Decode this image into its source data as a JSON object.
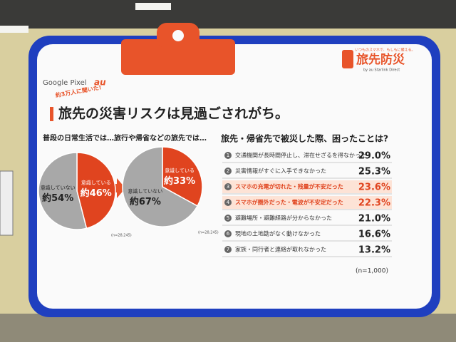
{
  "header": {
    "brand": "Google Pixel",
    "carrier": "au",
    "badge": "約3万人に聞いた!",
    "title": "旅先の災害リスクは見過ごされがち。"
  },
  "logo": {
    "tagline": "いつものスマホで、もしもに備える。",
    "name": "旅先防災",
    "by": "by au Starlink Direct"
  },
  "chart_data": [
    {
      "type": "pie",
      "title": "普段の日常生活では…",
      "categories": [
        "意識している",
        "意識していない"
      ],
      "values": [
        46,
        54
      ],
      "value_labels": [
        "約46%",
        "約54%"
      ],
      "colors": [
        "#e0441f",
        "#a8a8a8"
      ],
      "note": "(n=28,245)"
    },
    {
      "type": "pie",
      "title": "旅行や帰省などの旅先では…",
      "categories": [
        "意識している",
        "意識していない"
      ],
      "values": [
        33,
        67
      ],
      "value_labels": [
        "約33%",
        "約67%"
      ],
      "colors": [
        "#e0441f",
        "#a8a8a8"
      ],
      "note": "(n=28,245)"
    }
  ],
  "survey": {
    "title": "旅先・帰省先で被災した際、困ったことは?",
    "note": "(n=1,000)",
    "items": [
      {
        "num": 1,
        "label": "交通機関が長時間停止し、滞在せざるを得なかった",
        "value_label": "29.0%",
        "highlight": false
      },
      {
        "num": 2,
        "label": "災害情報がすぐに入手できなかった",
        "value_label": "25.3%",
        "highlight": false
      },
      {
        "num": 3,
        "label": "スマホの充電が切れた・残量が不安だった",
        "value_label": "23.6%",
        "highlight": true
      },
      {
        "num": 4,
        "label": "スマホが圏外だった・電波が不安定だった",
        "value_label": "22.3%",
        "highlight": true
      },
      {
        "num": 5,
        "label": "避難場所・避難経路が分からなかった",
        "value_label": "21.0%",
        "highlight": false
      },
      {
        "num": 6,
        "label": "現地の土地勘がなく動けなかった",
        "value_label": "16.6%",
        "highlight": false
      },
      {
        "num": 7,
        "label": "家族・同行者と連絡が取れなかった",
        "value_label": "13.2%",
        "highlight": false
      }
    ]
  }
}
